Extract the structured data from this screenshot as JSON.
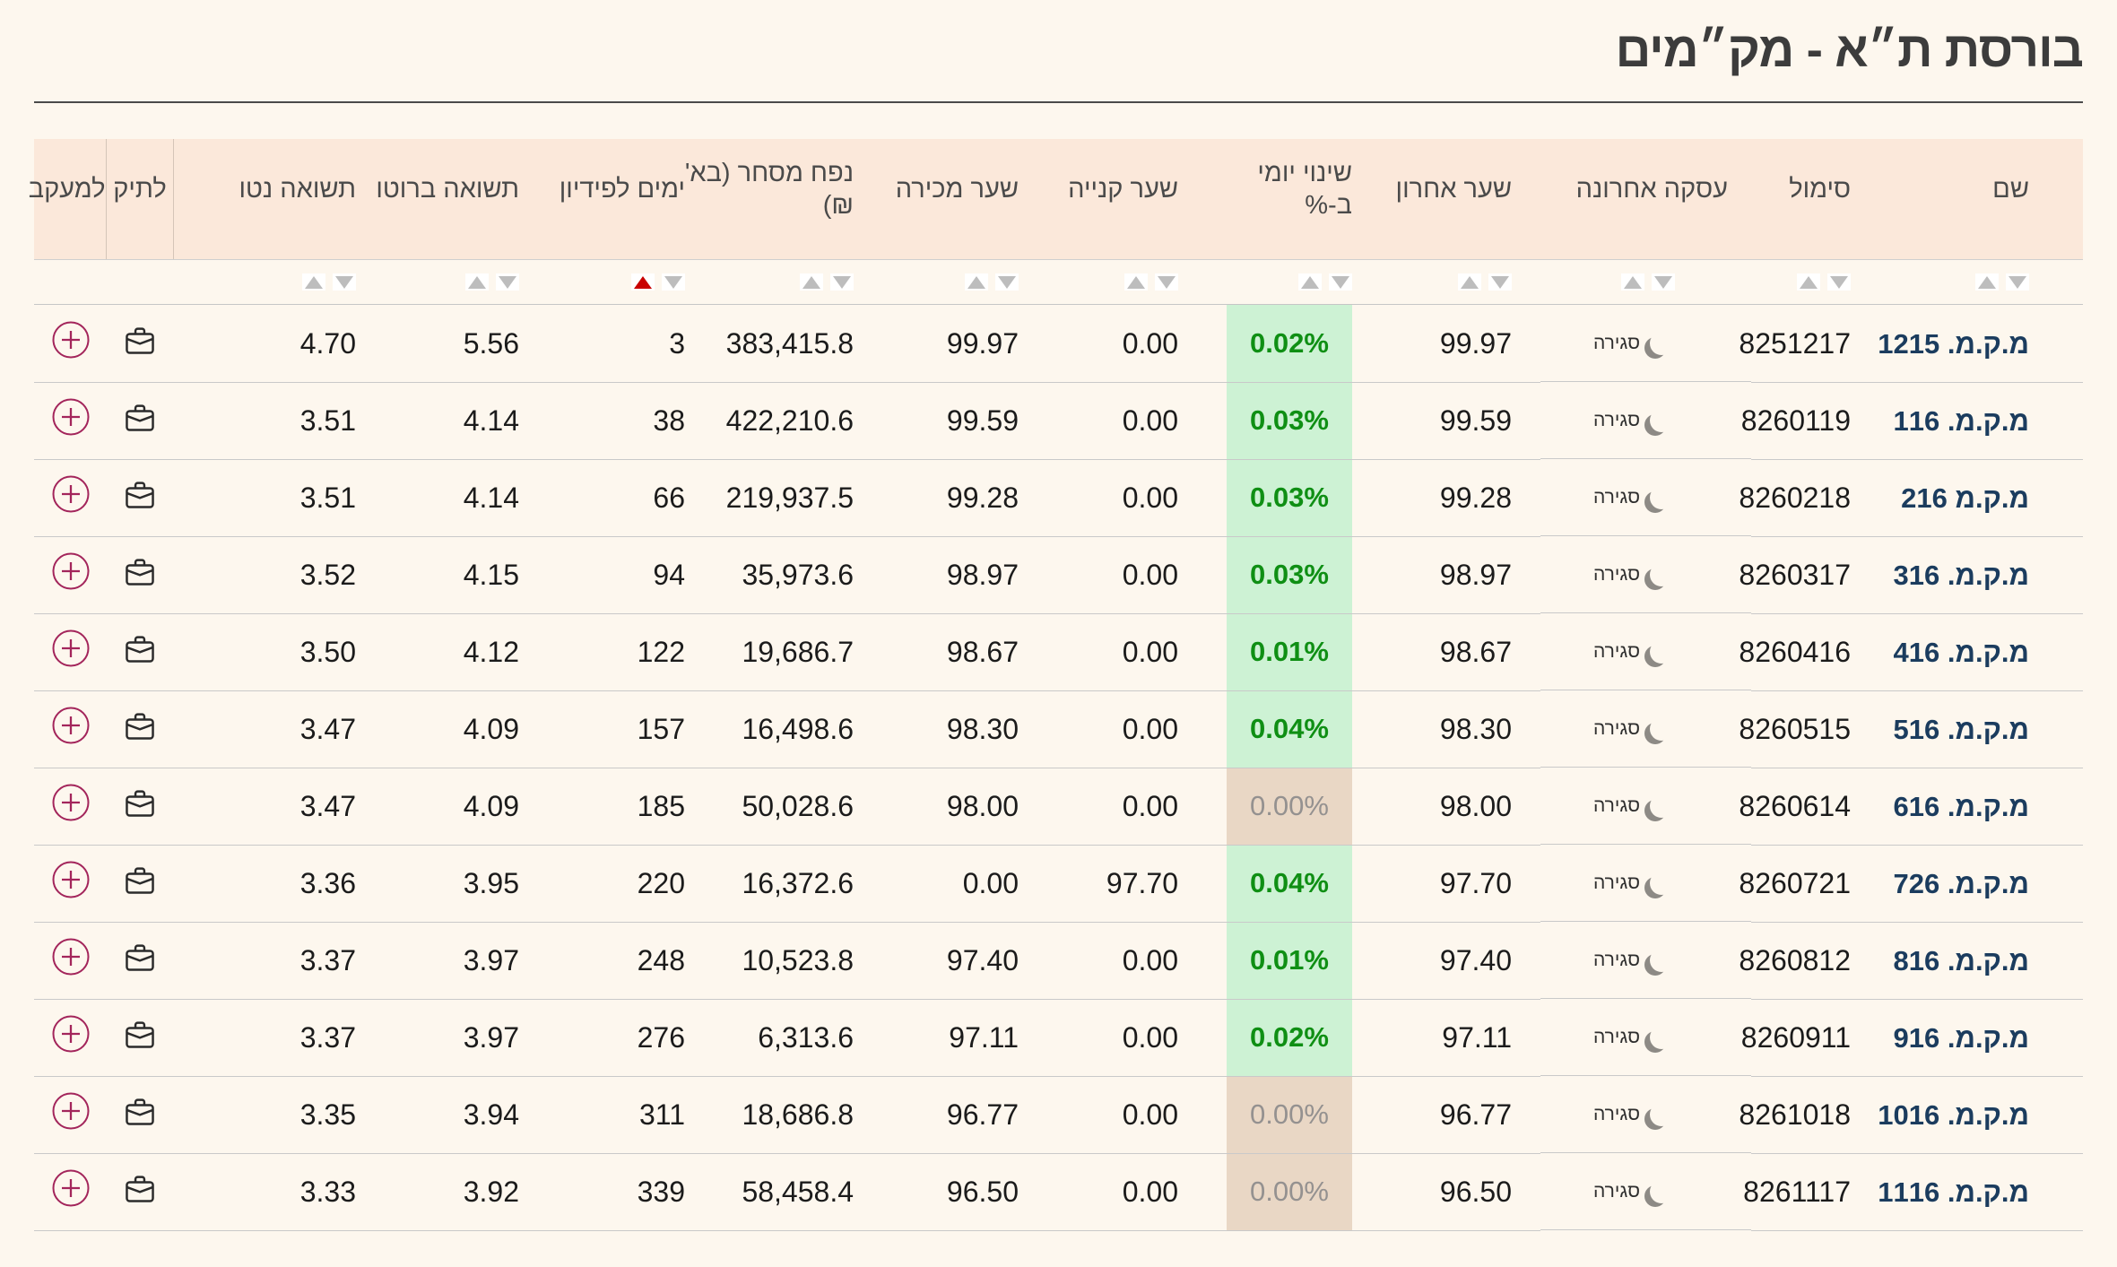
{
  "title": "בורסת ת״א - מק״מים",
  "colors": {
    "page_bg": "#fdf7ee",
    "header_bg": "#fbe8da",
    "positive_text": "#0f8f14",
    "positive_bg": "#cdf2d4",
    "zero_text": "#949190",
    "zero_bg": "#e9d7c5",
    "name_link": "#1b3c5e",
    "sort_active": "#c90000",
    "sort_inactive": "#bdbdbd",
    "watchlist_accent": "#a3255b"
  },
  "table": {
    "trade_status_label": "סגירה",
    "columns": [
      {
        "key": "name",
        "label": "שם",
        "sortable": true
      },
      {
        "key": "symbol",
        "label": "סימול",
        "sortable": true
      },
      {
        "key": "trade",
        "label": "עסקה אחרונה",
        "sortable": true
      },
      {
        "key": "last",
        "label": "שער אחרון",
        "sortable": true
      },
      {
        "key": "change",
        "label": "שינוי יומי\nב-%",
        "sortable": true
      },
      {
        "key": "buy",
        "label": "שער קנייה",
        "sortable": true
      },
      {
        "key": "sell",
        "label": "שער מכירה",
        "sortable": true
      },
      {
        "key": "volume",
        "label": "נפח מסחר (בא'\n₪)",
        "sortable": true
      },
      {
        "key": "days",
        "label": "ימים לפידיון",
        "sortable": true,
        "sorted": "asc"
      },
      {
        "key": "gross",
        "label": "תשואה ברוטו",
        "sortable": true
      },
      {
        "key": "net",
        "label": "תשואה נטו",
        "sortable": true
      },
      {
        "key": "portfolio",
        "label": "לתיק",
        "sortable": false
      },
      {
        "key": "watch",
        "label": "למעקב",
        "sortable": false
      }
    ],
    "rows": [
      {
        "name": "מ.ק.מ. 1215",
        "symbol": "8251217",
        "last": "99.97",
        "change": "0.02%",
        "change_state": "up",
        "buy": "0.00",
        "sell": "99.97",
        "volume": "383,415.8",
        "days": "3",
        "gross": "5.56",
        "net": "4.70"
      },
      {
        "name": "מ.ק.מ. 116",
        "symbol": "8260119",
        "last": "99.59",
        "change": "0.03%",
        "change_state": "up",
        "buy": "0.00",
        "sell": "99.59",
        "volume": "422,210.6",
        "days": "38",
        "gross": "4.14",
        "net": "3.51"
      },
      {
        "name": "מ.ק.מ 216",
        "symbol": "8260218",
        "last": "99.28",
        "change": "0.03%",
        "change_state": "up",
        "buy": "0.00",
        "sell": "99.28",
        "volume": "219,937.5",
        "days": "66",
        "gross": "4.14",
        "net": "3.51"
      },
      {
        "name": "מ.ק.מ. 316",
        "symbol": "8260317",
        "last": "98.97",
        "change": "0.03%",
        "change_state": "up",
        "buy": "0.00",
        "sell": "98.97",
        "volume": "35,973.6",
        "days": "94",
        "gross": "4.15",
        "net": "3.52"
      },
      {
        "name": "מ.ק.מ. 416",
        "symbol": "8260416",
        "last": "98.67",
        "change": "0.01%",
        "change_state": "up",
        "buy": "0.00",
        "sell": "98.67",
        "volume": "19,686.7",
        "days": "122",
        "gross": "4.12",
        "net": "3.50"
      },
      {
        "name": "מ.ק.מ. 516",
        "symbol": "8260515",
        "last": "98.30",
        "change": "0.04%",
        "change_state": "up",
        "buy": "0.00",
        "sell": "98.30",
        "volume": "16,498.6",
        "days": "157",
        "gross": "4.09",
        "net": "3.47"
      },
      {
        "name": "מ.ק.מ. 616",
        "symbol": "8260614",
        "last": "98.00",
        "change": "0.00%",
        "change_state": "zero",
        "buy": "0.00",
        "sell": "98.00",
        "volume": "50,028.6",
        "days": "185",
        "gross": "4.09",
        "net": "3.47"
      },
      {
        "name": "מ.ק.מ. 726",
        "symbol": "8260721",
        "last": "97.70",
        "change": "0.04%",
        "change_state": "up",
        "buy": "97.70",
        "sell": "0.00",
        "volume": "16,372.6",
        "days": "220",
        "gross": "3.95",
        "net": "3.36"
      },
      {
        "name": "מ.ק.מ. 816",
        "symbol": "8260812",
        "last": "97.40",
        "change": "0.01%",
        "change_state": "up",
        "buy": "0.00",
        "sell": "97.40",
        "volume": "10,523.8",
        "days": "248",
        "gross": "3.97",
        "net": "3.37"
      },
      {
        "name": "מ.ק.מ. 916",
        "symbol": "8260911",
        "last": "97.11",
        "change": "0.02%",
        "change_state": "up",
        "buy": "0.00",
        "sell": "97.11",
        "volume": "6,313.6",
        "days": "276",
        "gross": "3.97",
        "net": "3.37"
      },
      {
        "name": "מ.ק.מ. 1016",
        "symbol": "8261018",
        "last": "96.77",
        "change": "0.00%",
        "change_state": "zero",
        "buy": "0.00",
        "sell": "96.77",
        "volume": "18,686.8",
        "days": "311",
        "gross": "3.94",
        "net": "3.35"
      },
      {
        "name": "מ.ק.מ. 1116",
        "symbol": "8261117",
        "last": "96.50",
        "change": "0.00%",
        "change_state": "zero",
        "buy": "0.00",
        "sell": "96.50",
        "volume": "58,458.4",
        "days": "339",
        "gross": "3.92",
        "net": "3.33"
      }
    ]
  }
}
